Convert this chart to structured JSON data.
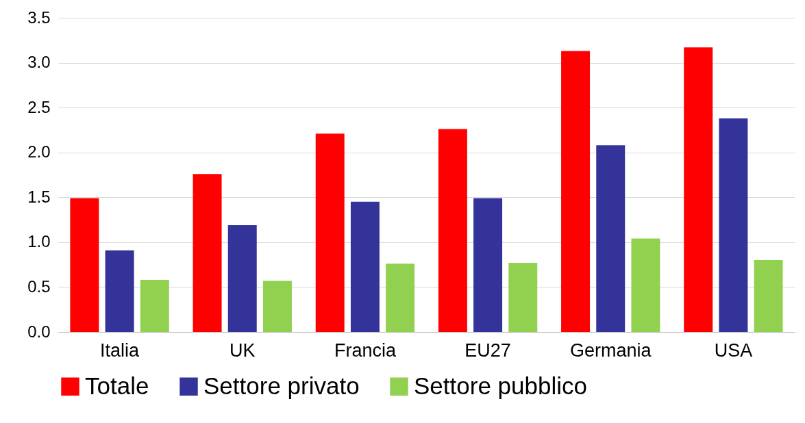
{
  "chart_data": {
    "type": "bar",
    "categories": [
      "Italia",
      "UK",
      "Francia",
      "EU27",
      "Germania",
      "USA"
    ],
    "series": [
      {
        "name": "Totale",
        "color": "#ff0000",
        "values": [
          1.49,
          1.76,
          2.21,
          2.26,
          3.13,
          3.17
        ]
      },
      {
        "name": "Settore privato",
        "color": "#333399",
        "values": [
          0.91,
          1.19,
          1.45,
          1.49,
          2.08,
          2.38
        ]
      },
      {
        "name": "Settore pubblico",
        "color": "#92d050",
        "values": [
          0.58,
          0.57,
          0.76,
          0.77,
          1.04,
          0.8
        ]
      }
    ],
    "ylim": [
      0,
      3.5
    ],
    "yticks": [
      {
        "value": 0,
        "label": "0.0"
      },
      0.5,
      {
        "value": 1,
        "label": "1.0"
      },
      1.5,
      {
        "value": 2,
        "label": "2.0"
      },
      2.5,
      {
        "value": 3,
        "label": "3.0"
      },
      3.5
    ],
    "grid": "y",
    "legend": "bottom"
  }
}
